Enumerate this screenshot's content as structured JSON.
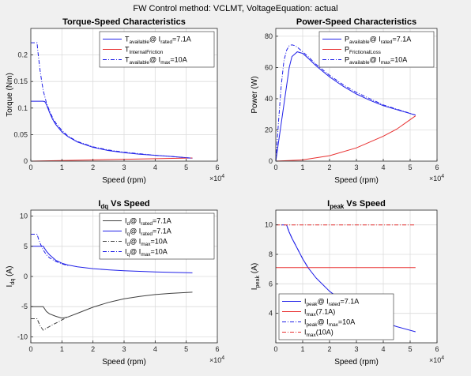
{
  "figure": {
    "suptitle": "FW Control method: VCLMT, VoltageEquation: actual"
  },
  "colors": {
    "blue": "#2020e8",
    "red": "#e83030",
    "black": "#404040",
    "bg": "#f0f0f0",
    "axes_bg": "#ffffff",
    "grid": "#dcdcdc"
  },
  "chart_data": [
    {
      "type": "line",
      "title": "Torque-Speed Characteristics",
      "xlabel": "Speed (rpm)",
      "ylabel": "Torque (Nm)",
      "xlim": [
        0,
        60000
      ],
      "ylim": [
        0,
        0.25
      ],
      "xticks": [
        0,
        10000,
        20000,
        30000,
        40000,
        50000,
        60000
      ],
      "xticklabels": [
        "0",
        "1",
        "2",
        "3",
        "4",
        "5",
        "6"
      ],
      "xexp": "4",
      "yticks": [
        0,
        0.05,
        0.1,
        0.15,
        0.2
      ],
      "yticklabels": [
        "0",
        "0.05",
        "0.1",
        "0.15",
        "0.2"
      ],
      "grid": true,
      "legend": "top-right",
      "series": [
        {
          "name": "T_available@ I_rated=7.1A",
          "color": "#2020e8",
          "dash": "",
          "legend_parts": [
            [
              "T",
              ""
            ],
            [
              "available",
              "sub"
            ],
            [
              "@ I",
              ""
            ],
            [
              "rated",
              "sub"
            ],
            [
              "=7.1A",
              ""
            ]
          ],
          "x": [
            0,
            4000,
            4500,
            5000,
            6000,
            7000,
            8000,
            10000,
            12000,
            15000,
            20000,
            25000,
            30000,
            35000,
            40000,
            45000,
            52000
          ],
          "y": [
            0.113,
            0.113,
            0.112,
            0.107,
            0.092,
            0.079,
            0.069,
            0.055,
            0.046,
            0.036,
            0.026,
            0.02,
            0.016,
            0.013,
            0.011,
            0.009,
            0.0055
          ]
        },
        {
          "name": "T_InternalFriction",
          "color": "#e83030",
          "dash": "",
          "legend_parts": [
            [
              "T",
              ""
            ],
            [
              "InternalFriction",
              "sub"
            ]
          ],
          "x": [
            0,
            52000
          ],
          "y": [
            0.0,
            0.006
          ]
        },
        {
          "name": "T_available@ I_max=10A",
          "color": "#2020e8",
          "dash": "5,2,1,2",
          "legend_parts": [
            [
              "T",
              ""
            ],
            [
              "available",
              "sub"
            ],
            [
              "@ I",
              ""
            ],
            [
              "max",
              "sub"
            ],
            [
              "=10A",
              ""
            ]
          ],
          "x": [
            0,
            2000,
            2200,
            2600,
            3000,
            3500,
            4000,
            5000,
            6000,
            7000,
            8000,
            10000,
            12000,
            15000,
            20000,
            25000,
            30000,
            35000,
            40000,
            45000,
            52000
          ],
          "y": [
            0.223,
            0.223,
            0.21,
            0.19,
            0.17,
            0.15,
            0.133,
            0.11,
            0.095,
            0.082,
            0.072,
            0.058,
            0.047,
            0.037,
            0.027,
            0.021,
            0.017,
            0.014,
            0.011,
            0.009,
            0.0055
          ]
        }
      ]
    },
    {
      "type": "line",
      "title": "Power-Speed Characteristics",
      "xlabel": "Speed (rpm)",
      "ylabel": "Power (W)",
      "xlim": [
        0,
        60000
      ],
      "ylim": [
        0,
        85
      ],
      "xticks": [
        0,
        10000,
        20000,
        30000,
        40000,
        50000,
        60000
      ],
      "xticklabels": [
        "0",
        "1",
        "2",
        "3",
        "4",
        "5",
        "6"
      ],
      "xexp": "4",
      "yticks": [
        0,
        20,
        40,
        60,
        80
      ],
      "yticklabels": [
        "0",
        "20",
        "40",
        "60",
        "80"
      ],
      "grid": true,
      "legend": "top-right",
      "series": [
        {
          "name": "P_available@ I_rated=7.1A",
          "color": "#2020e8",
          "dash": "",
          "legend_parts": [
            [
              "P",
              ""
            ],
            [
              "available",
              "sub"
            ],
            [
              "@ I",
              ""
            ],
            [
              "rated",
              "sub"
            ],
            [
              "=7.1A",
              ""
            ]
          ],
          "x": [
            0,
            2000,
            3000,
            4000,
            5000,
            6000,
            8000,
            10000,
            12000,
            15000,
            20000,
            25000,
            30000,
            35000,
            40000,
            45000,
            52000
          ],
          "y": [
            0,
            24,
            36,
            48,
            60,
            67,
            70,
            69,
            66,
            61,
            54,
            48,
            43,
            39,
            35.5,
            33,
            29.5
          ]
        },
        {
          "name": "P_FrictionalLoss",
          "color": "#e83030",
          "dash": "",
          "legend_parts": [
            [
              "P",
              ""
            ],
            [
              "FrictionalLoss",
              "sub"
            ]
          ],
          "x": [
            0,
            10000,
            20000,
            30000,
            40000,
            45000,
            52000
          ],
          "y": [
            0,
            0.8,
            3.5,
            8.5,
            16,
            20.5,
            29
          ]
        },
        {
          "name": "P_available@ I_max=10A",
          "color": "#2020e8",
          "dash": "5,2,1,2",
          "legend_parts": [
            [
              "P",
              ""
            ],
            [
              "available",
              "sub"
            ],
            [
              "@ I",
              ""
            ],
            [
              "max",
              "sub"
            ],
            [
              "=10A",
              ""
            ]
          ],
          "x": [
            0,
            1000,
            2000,
            3000,
            4000,
            5000,
            6000,
            7000,
            8000,
            10000,
            12000,
            15000,
            20000,
            25000,
            30000,
            40000,
            52000
          ],
          "y": [
            0,
            25,
            48,
            64,
            71,
            74,
            74.5,
            74,
            73,
            70,
            67,
            62,
            55,
            49,
            44,
            36,
            29.5
          ]
        }
      ]
    },
    {
      "type": "line",
      "title": "I_dq Vs Speed",
      "title_parts": [
        [
          "I",
          ""
        ],
        [
          "dq",
          "sub"
        ],
        [
          " Vs Speed",
          ""
        ]
      ],
      "xlabel": "Speed (rpm)",
      "ylabel": "I_dq (A)",
      "ylabel_parts": [
        [
          "I",
          ""
        ],
        [
          "dq",
          "sub"
        ],
        [
          " (A)",
          ""
        ]
      ],
      "xlim": [
        0,
        60000
      ],
      "ylim": [
        -11,
        11
      ],
      "xticks": [
        0,
        10000,
        20000,
        30000,
        40000,
        50000,
        60000
      ],
      "xticklabels": [
        "0",
        "1",
        "2",
        "3",
        "4",
        "5",
        "6"
      ],
      "xexp": "4",
      "yticks": [
        -10,
        -5,
        0,
        5,
        10
      ],
      "yticklabels": [
        "-10",
        "-5",
        "0",
        "5",
        "10"
      ],
      "grid": true,
      "legend": "top-right",
      "series": [
        {
          "name": "I_d@ I_rated=7.1A",
          "color": "#404040",
          "dash": "",
          "legend_parts": [
            [
              "I",
              ""
            ],
            [
              "d",
              "sub"
            ],
            [
              "@ I",
              ""
            ],
            [
              "rated",
              "sub"
            ],
            [
              "=7.1A",
              ""
            ]
          ],
          "x": [
            0,
            4000,
            5000,
            6000,
            8000,
            10000,
            12000,
            15000,
            20000,
            25000,
            30000,
            35000,
            40000,
            45000,
            52000
          ],
          "y": [
            -5,
            -5,
            -5.8,
            -6.2,
            -6.6,
            -6.9,
            -6.7,
            -6.1,
            -5.1,
            -4.3,
            -3.7,
            -3.3,
            -3.0,
            -2.8,
            -2.6
          ]
        },
        {
          "name": "I_q@ I_rated=7.1A",
          "color": "#2020e8",
          "dash": "",
          "legend_parts": [
            [
              "I",
              ""
            ],
            [
              "q",
              "sub"
            ],
            [
              "@ I",
              ""
            ],
            [
              "rated",
              "sub"
            ],
            [
              "=7.1A",
              ""
            ]
          ],
          "x": [
            0,
            4000,
            5000,
            6000,
            8000,
            10000,
            12000,
            15000,
            20000,
            25000,
            30000,
            35000,
            40000,
            45000,
            52000
          ],
          "y": [
            5,
            5,
            4.2,
            3.6,
            2.7,
            2.2,
            1.9,
            1.6,
            1.3,
            1.1,
            0.95,
            0.85,
            0.75,
            0.7,
            0.6
          ]
        },
        {
          "name": "I_d@ I_max=10A",
          "color": "#404040",
          "dash": "5,2,1,2",
          "legend_parts": [
            [
              "I",
              ""
            ],
            [
              "d",
              "sub"
            ],
            [
              "@ I",
              ""
            ],
            [
              "max",
              "sub"
            ],
            [
              "=10A",
              ""
            ]
          ],
          "x": [
            0,
            2000,
            2500,
            3000,
            4000,
            5000,
            7000,
            9000,
            10000,
            12000
          ],
          "y": [
            -7,
            -7,
            -7.6,
            -8.2,
            -8.9,
            -8.6,
            -8.0,
            -7.5,
            -7.2,
            -6.7
          ]
        },
        {
          "name": "I_q@ I_max=10A",
          "color": "#2020e8",
          "dash": "5,2,1,2",
          "legend_parts": [
            [
              "I",
              ""
            ],
            [
              "q",
              "sub"
            ],
            [
              "@ I",
              ""
            ],
            [
              "max",
              "sub"
            ],
            [
              "=10A",
              ""
            ]
          ],
          "x": [
            0,
            2000,
            2500,
            3000,
            4000,
            5000,
            6000,
            8000,
            10000,
            12000
          ],
          "y": [
            7,
            7,
            6.2,
            5.5,
            4.4,
            3.6,
            3.1,
            2.5,
            2.1,
            1.8
          ]
        }
      ]
    },
    {
      "type": "line",
      "title": "I_peak Vs Speed",
      "title_parts": [
        [
          "I",
          ""
        ],
        [
          "peak",
          "sub"
        ],
        [
          " Vs Speed",
          ""
        ]
      ],
      "xlabel": "Speed (rpm)",
      "ylabel": "I_peak (A)",
      "ylabel_parts": [
        [
          "I",
          ""
        ],
        [
          "peak",
          "sub"
        ],
        [
          " (A)",
          ""
        ]
      ],
      "xlim": [
        0,
        60000
      ],
      "ylim": [
        2,
        11
      ],
      "xticks": [
        0,
        10000,
        20000,
        30000,
        40000,
        50000,
        60000
      ],
      "xticklabels": [
        "0",
        "1",
        "2",
        "3",
        "4",
        "5",
        "6"
      ],
      "xexp": "4",
      "yticks": [
        4,
        6,
        8,
        10
      ],
      "yticklabels": [
        "4",
        "6",
        "8",
        "10"
      ],
      "grid": true,
      "legend": "bottom-left",
      "series": [
        {
          "name": "I_peak@ I_rated=7.1A",
          "color": "#2020e8",
          "dash": "",
          "legend_parts": [
            [
              "I",
              ""
            ],
            [
              "peak",
              "sub"
            ],
            [
              "@ I",
              ""
            ],
            [
              "rated",
              "sub"
            ],
            [
              "=7.1A",
              ""
            ]
          ],
          "x": [
            4000,
            5000,
            6000,
            8000,
            10000,
            12000,
            15000,
            20000,
            25000,
            30000,
            35000,
            40000,
            45000,
            52000
          ],
          "y": [
            10,
            9.5,
            9.1,
            8.4,
            7.7,
            7.1,
            6.4,
            5.5,
            4.8,
            4.2,
            3.8,
            3.4,
            3.1,
            2.75
          ]
        },
        {
          "name": "I_max(7.1A)",
          "color": "#e83030",
          "dash": "",
          "legend_parts": [
            [
              "I",
              ""
            ],
            [
              "max",
              "sub"
            ],
            [
              "(7.1A)",
              ""
            ]
          ],
          "x": [
            0,
            52000
          ],
          "y": [
            7.1,
            7.1
          ]
        },
        {
          "name": "I_peak@ I_max=10A",
          "color": "#2020e8",
          "dash": "5,2,1,2",
          "legend_parts": [
            [
              "I",
              ""
            ],
            [
              "peak",
              "sub"
            ],
            [
              "@ I",
              ""
            ],
            [
              "max",
              "sub"
            ],
            [
              "=10A",
              ""
            ]
          ],
          "x": [
            2000,
            3000,
            4000,
            5000,
            6000,
            8000,
            10000,
            12000
          ],
          "y": [
            10,
            10,
            10,
            9.5,
            9.1,
            8.4,
            7.7,
            7.1
          ]
        },
        {
          "name": "I_max(10A)",
          "color": "#e83030",
          "dash": "5,2,1,2",
          "legend_parts": [
            [
              "I",
              ""
            ],
            [
              "max",
              "sub"
            ],
            [
              "(10A)",
              ""
            ]
          ],
          "x": [
            0,
            52000
          ],
          "y": [
            10,
            10
          ]
        }
      ]
    }
  ]
}
